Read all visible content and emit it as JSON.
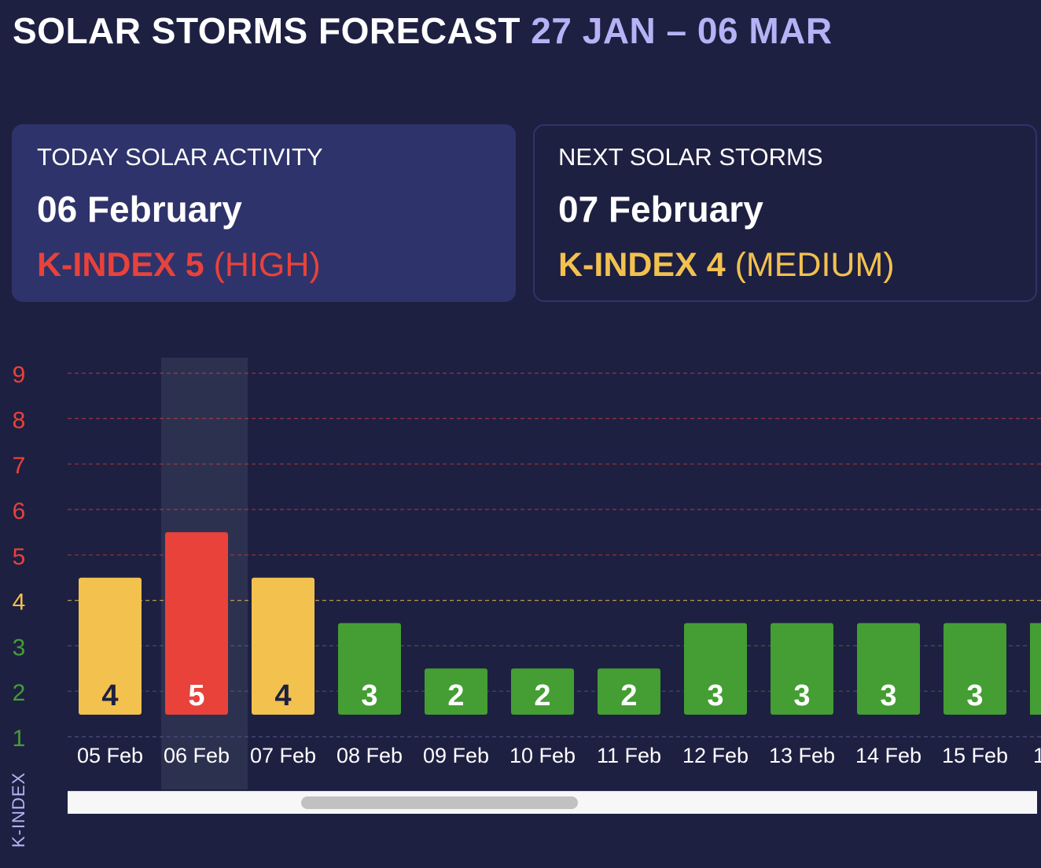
{
  "header": {
    "title": "SOLAR STORMS FORECAST",
    "range": "27 JAN – 06 MAR"
  },
  "today_card": {
    "label": "TODAY SOLAR ACTIVITY",
    "date": "06 February",
    "kindex_text": "K-INDEX 5",
    "level": "(HIGH)",
    "color": "#e8423a"
  },
  "next_card": {
    "label": "NEXT SOLAR STORMS",
    "date": "07 February",
    "kindex_text": "K-INDEX 4",
    "level": "(MEDIUM)",
    "color": "#f2c14e"
  },
  "colors": {
    "background": "#1e2042",
    "card": "#2f336b",
    "accent": "#b5b3f5",
    "high": "#e8423a",
    "medium": "#f2c14e",
    "low": "#449e33"
  },
  "chart_data": {
    "type": "bar",
    "ylabel": "K-INDEX",
    "ylim": [
      1,
      9
    ],
    "yticks": [
      1,
      2,
      3,
      4,
      5,
      6,
      7,
      8,
      9
    ],
    "categories": [
      "05 Feb",
      "06 Feb",
      "07 Feb",
      "08 Feb",
      "09 Feb",
      "10 Feb",
      "11 Feb",
      "12 Feb",
      "13 Feb",
      "14 Feb",
      "15 Feb",
      "1"
    ],
    "values": [
      4,
      5,
      4,
      3,
      2,
      2,
      2,
      3,
      3,
      3,
      3,
      null
    ],
    "highlighted": "06 Feb",
    "grid": true,
    "scrollable": true
  }
}
